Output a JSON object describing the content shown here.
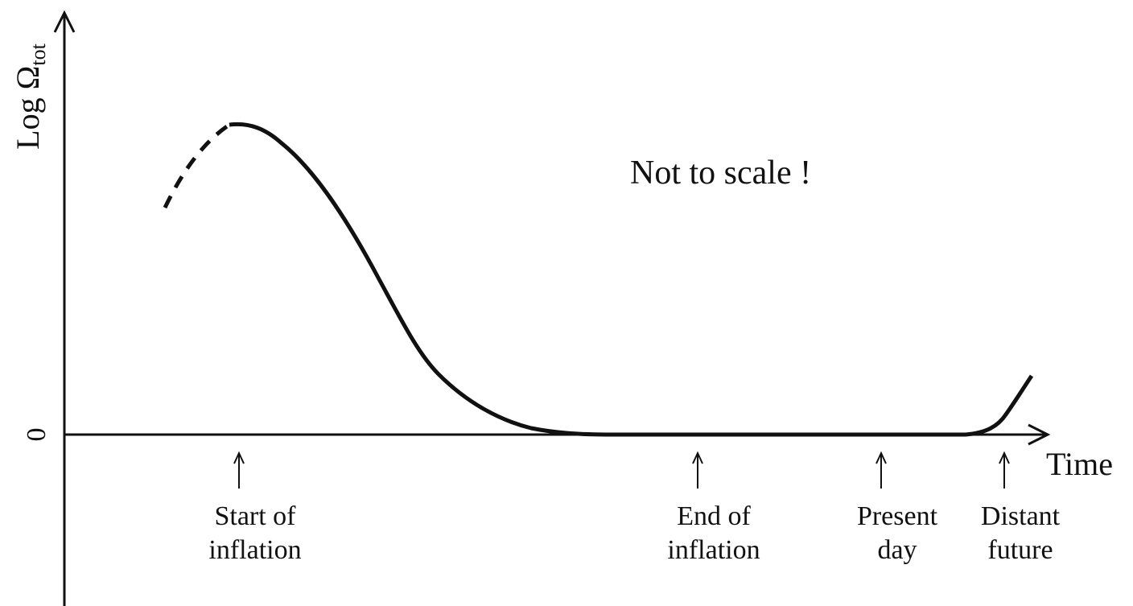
{
  "axes": {
    "y_label": "Log Ω",
    "y_label_subscript": "tot",
    "origin_label": "0",
    "x_label": "Time"
  },
  "note": "Not to scale !",
  "markers": [
    {
      "lines": [
        "Start of",
        "inflation"
      ]
    },
    {
      "lines": [
        "End of",
        "inflation"
      ]
    },
    {
      "lines": [
        "Present",
        "day"
      ]
    },
    {
      "lines": [
        "Distant",
        "future"
      ]
    }
  ]
}
